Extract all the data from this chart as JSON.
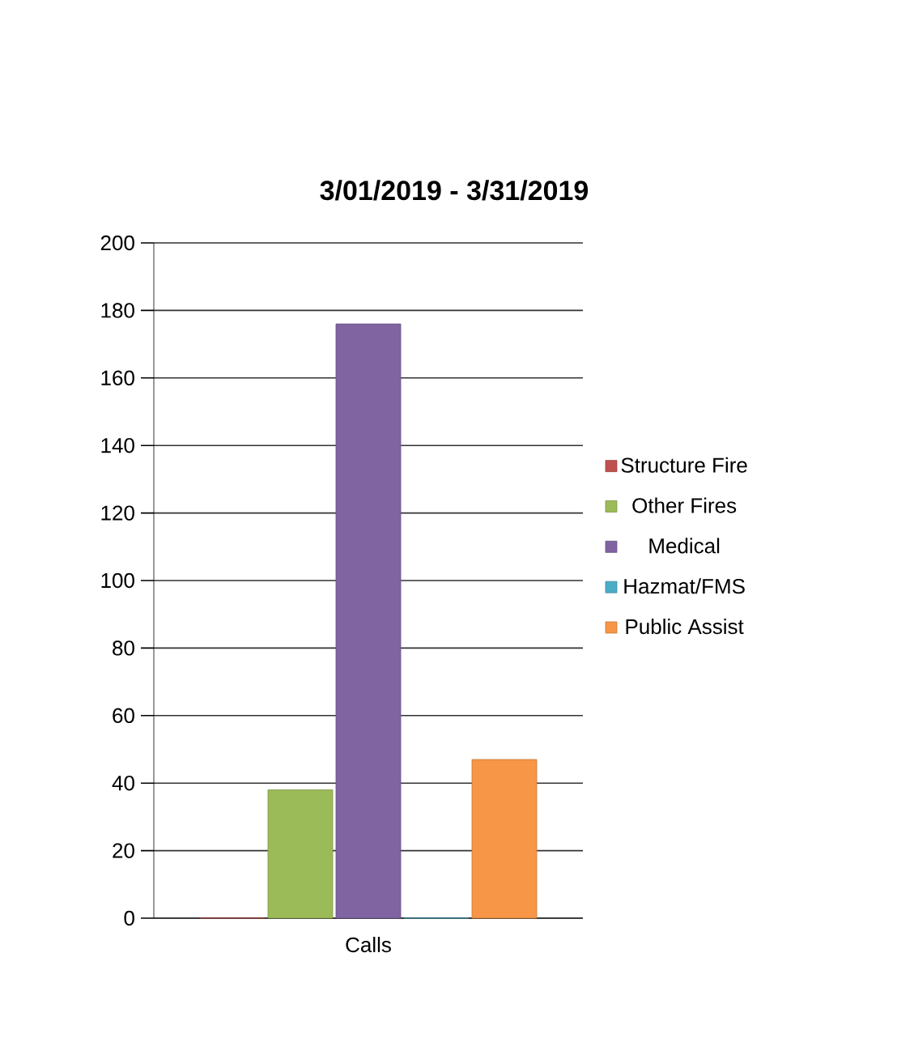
{
  "chart_data": {
    "type": "bar",
    "title": "3/01/2019 - 3/31/2019",
    "categories": [
      "Calls"
    ],
    "series": [
      {
        "name": "Structure Fire",
        "color": "#c0504d",
        "values": [
          0
        ]
      },
      {
        "name": "Other Fires",
        "color": "#9bbb59",
        "values": [
          38
        ]
      },
      {
        "name": "Medical",
        "color": "#8064a2",
        "values": [
          176
        ]
      },
      {
        "name": "Hazmat/FMS",
        "color": "#4bacc6",
        "values": [
          0
        ]
      },
      {
        "name": "Public Assist",
        "color": "#f79646",
        "values": [
          47
        ]
      }
    ],
    "ylim": [
      0,
      200
    ],
    "yticks": [
      0,
      20,
      40,
      60,
      80,
      100,
      120,
      140,
      160,
      180,
      200
    ],
    "grid": "y",
    "legend": "right"
  }
}
